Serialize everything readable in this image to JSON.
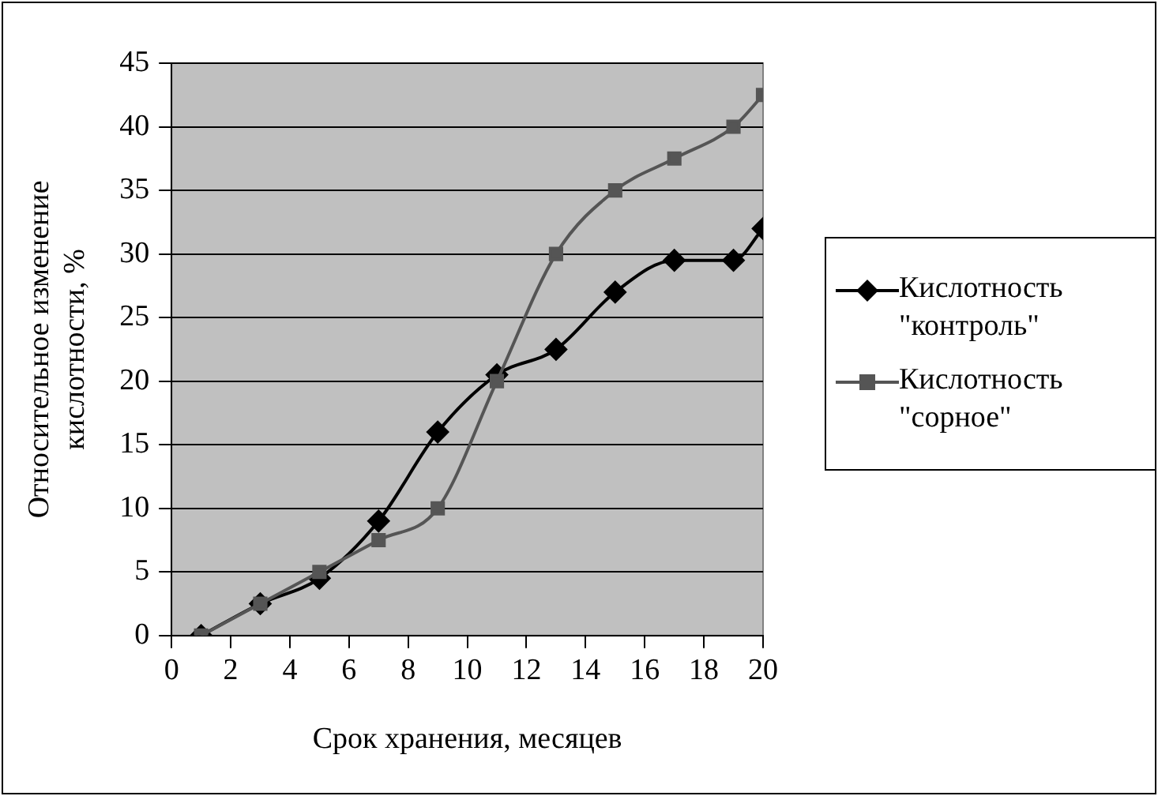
{
  "chart_data": {
    "type": "line",
    "xlabel": "Срок хранения, месяцев",
    "ylabel": "Относительное изменение кислотности, %",
    "x": [
      1,
      3,
      5,
      7,
      9,
      11,
      13,
      15,
      17,
      19,
      20
    ],
    "series": [
      {
        "name": "Кислотность \"контроль\"",
        "color": "#000000",
        "marker": "diamond",
        "values": [
          0,
          2.5,
          4.5,
          9,
          16,
          20.5,
          22.5,
          27,
          29.5,
          29.5,
          32
        ]
      },
      {
        "name": "Кислотность \"сорное\"",
        "color": "#555555",
        "marker": "square",
        "values": [
          0,
          2.5,
          5,
          7.5,
          10,
          20,
          30,
          35,
          37.5,
          40,
          42.5
        ]
      }
    ],
    "xlim": [
      0,
      20
    ],
    "xticks": [
      0,
      2,
      4,
      6,
      8,
      10,
      12,
      14,
      16,
      18,
      20
    ],
    "ylim": [
      0,
      45
    ],
    "yticks": [
      0,
      5,
      10,
      15,
      20,
      25,
      30,
      35,
      40,
      45
    ],
    "grid": "y",
    "legend": "right",
    "line_style": "solid"
  }
}
